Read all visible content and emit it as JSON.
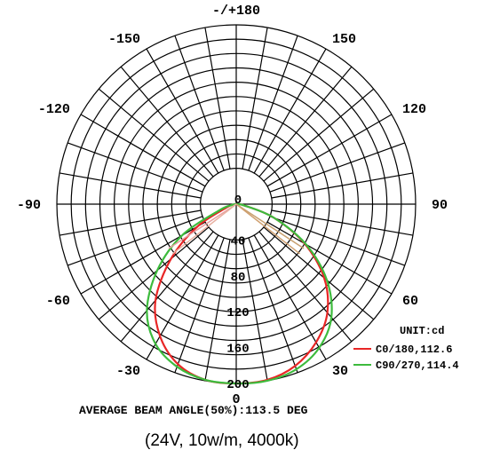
{
  "chart_data": {
    "type": "polar",
    "angle_labels": [
      {
        "angle": 180,
        "text": "-/+180"
      },
      {
        "angle": -150,
        "text": "-150"
      },
      {
        "angle": 150,
        "text": "150"
      },
      {
        "angle": -120,
        "text": "-120"
      },
      {
        "angle": 120,
        "text": "120"
      },
      {
        "angle": -90,
        "text": "-90"
      },
      {
        "angle": 90,
        "text": "90"
      },
      {
        "angle": -60,
        "text": "-60"
      },
      {
        "angle": 60,
        "text": "60"
      },
      {
        "angle": -30,
        "text": "-30"
      },
      {
        "angle": 30,
        "text": "30"
      },
      {
        "angle": 0,
        "text": "0"
      }
    ],
    "radial_ticks": [
      0,
      40,
      80,
      120,
      160,
      200
    ],
    "radial_max": 200,
    "inner_ring": 40,
    "legend": {
      "title": "UNIT:cd",
      "position": "bottom-right",
      "entries": [
        "C0/180,112.6",
        "C90/270,114.4"
      ]
    },
    "series": [
      {
        "name": "C0/180,112.6",
        "color": "#e82626",
        "points": [
          {
            "angle": -90,
            "value": 0
          },
          {
            "angle": -80,
            "value": 3
          },
          {
            "angle": -70,
            "value": 12
          },
          {
            "angle": -60,
            "value": 50
          },
          {
            "angle": -50,
            "value": 95
          },
          {
            "angle": -40,
            "value": 140
          },
          {
            "angle": -30,
            "value": 170
          },
          {
            "angle": -20,
            "value": 190
          },
          {
            "angle": -10,
            "value": 199
          },
          {
            "angle": 0,
            "value": 200
          },
          {
            "angle": 10,
            "value": 199
          },
          {
            "angle": 20,
            "value": 192
          },
          {
            "angle": 30,
            "value": 178
          },
          {
            "angle": 40,
            "value": 158
          },
          {
            "angle": 50,
            "value": 128
          },
          {
            "angle": 60,
            "value": 88
          },
          {
            "angle": 70,
            "value": 45
          },
          {
            "angle": 80,
            "value": 10
          },
          {
            "angle": 90,
            "value": 0
          }
        ]
      },
      {
        "name": "C90/270,114.4",
        "color": "#3dbb3d",
        "points": [
          {
            "angle": -90,
            "value": 0
          },
          {
            "angle": -80,
            "value": 4
          },
          {
            "angle": -70,
            "value": 20
          },
          {
            "angle": -60,
            "value": 70
          },
          {
            "angle": -50,
            "value": 115
          },
          {
            "angle": -40,
            "value": 155
          },
          {
            "angle": -30,
            "value": 180
          },
          {
            "angle": -20,
            "value": 193
          },
          {
            "angle": -10,
            "value": 199
          },
          {
            "angle": 0,
            "value": 200
          },
          {
            "angle": 10,
            "value": 200
          },
          {
            "angle": 20,
            "value": 196
          },
          {
            "angle": 30,
            "value": 185
          },
          {
            "angle": 40,
            "value": 165
          },
          {
            "angle": 50,
            "value": 132
          },
          {
            "angle": 60,
            "value": 90
          },
          {
            "angle": 70,
            "value": 45
          },
          {
            "angle": 80,
            "value": 10
          },
          {
            "angle": 90,
            "value": 0
          }
        ]
      }
    ],
    "footer": "AVERAGE BEAM ANGLE(50%):113.5 DEG",
    "subtitle": "(24V, 10w/m, 4000k)"
  }
}
